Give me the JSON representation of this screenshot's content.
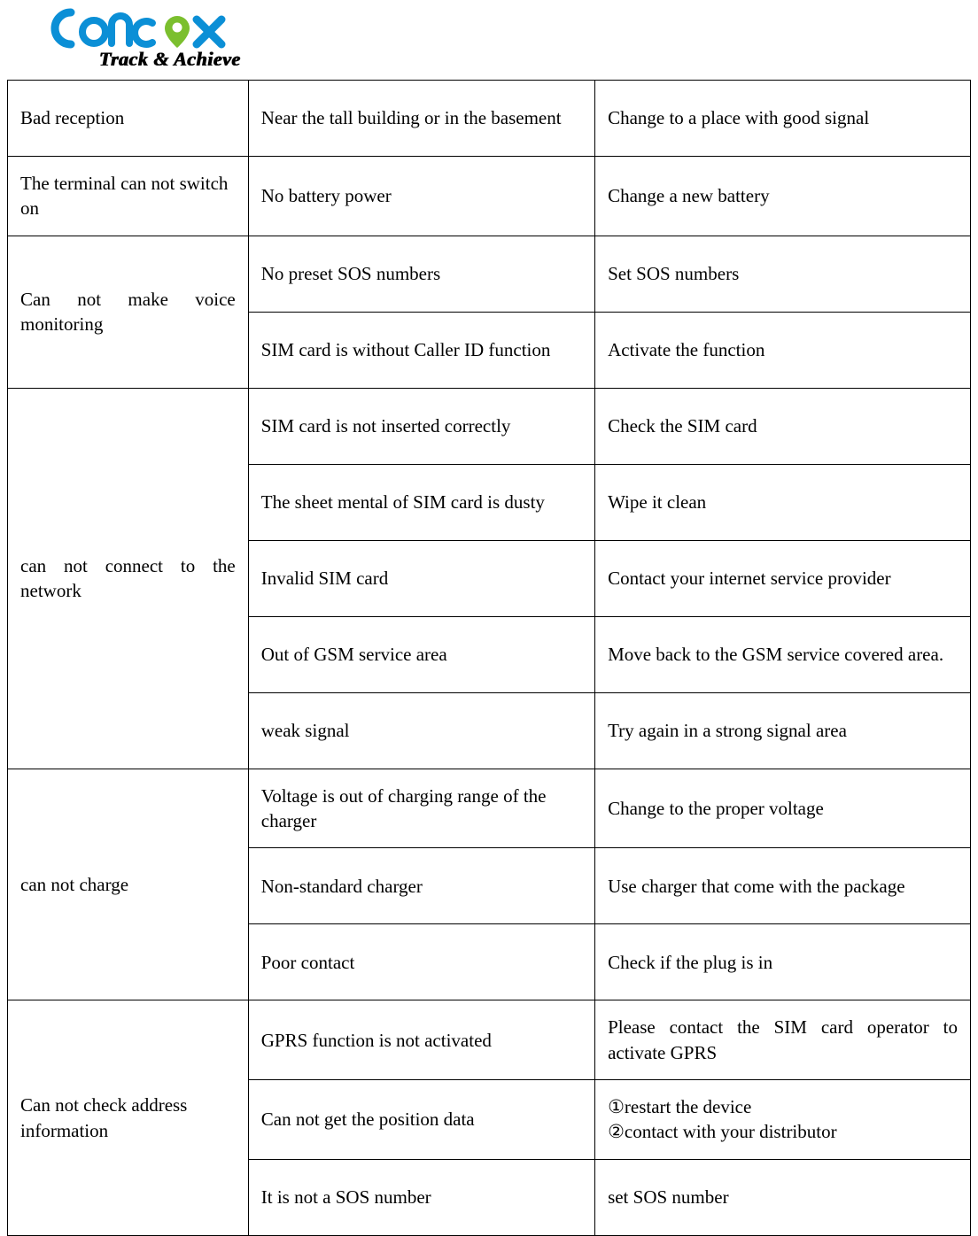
{
  "logo": {
    "tagline": "Track & Achieve",
    "brand_colors": {
      "blue": "#0b8fd6",
      "green": "#7bbf2e",
      "text": "#000000"
    }
  },
  "table": {
    "border_color": "#000000",
    "font_family": "Times New Roman",
    "font_size_pt": 16,
    "col_widths_pct": [
      25,
      36,
      39
    ],
    "groups": [
      {
        "problem": "Bad reception",
        "rows": [
          {
            "cause": "Near the tall building or in the basement",
            "solution": "Change to a place with good signal"
          }
        ]
      },
      {
        "problem": "The terminal can not switch on",
        "rows": [
          {
            "cause": "No battery power",
            "solution": "Change a new battery"
          }
        ]
      },
      {
        "problem": "Can not make voice monitoring",
        "problem_justify": true,
        "rows": [
          {
            "cause": "No preset SOS numbers",
            "solution": "Set SOS numbers"
          },
          {
            "cause": "SIM card is without Caller ID function",
            "solution": "Activate the function"
          }
        ]
      },
      {
        "problem": "can not connect to the network",
        "problem_justify": true,
        "rows": [
          {
            "cause": "SIM card is not inserted correctly",
            "solution": "Check the SIM card"
          },
          {
            "cause": "The sheet mental of SIM card is dusty",
            "solution": "Wipe it clean"
          },
          {
            "cause": "Invalid SIM card",
            "solution": "Contact your internet service provider",
            "solution_justify": true
          },
          {
            "cause": "Out of GSM service area",
            "solution": "Move back to the GSM service covered area.",
            "solution_justify": true
          },
          {
            "cause": "weak signal",
            "solution": "Try again in a strong signal area"
          }
        ]
      },
      {
        "problem": "can not charge",
        "rows": [
          {
            "cause": "Voltage is out of charging range of the charger",
            "solution": "Change to the proper voltage"
          },
          {
            "cause": "Non-standard charger",
            "solution": "Use charger that come with the package",
            "solution_justify": true
          },
          {
            "cause": "Poor contact",
            "solution": "Check if the plug is in"
          }
        ]
      },
      {
        "problem": "Can not check address information",
        "rows": [
          {
            "cause": "GPRS function is not activated",
            "solution": "Please contact the SIM card operator to activate GPRS",
            "solution_justify": true
          },
          {
            "cause": "Can not get the position data",
            "solution": "①restart the device\n②contact with your distributor"
          },
          {
            "cause": "It is not a SOS number",
            "solution": "set SOS number"
          }
        ]
      }
    ]
  }
}
